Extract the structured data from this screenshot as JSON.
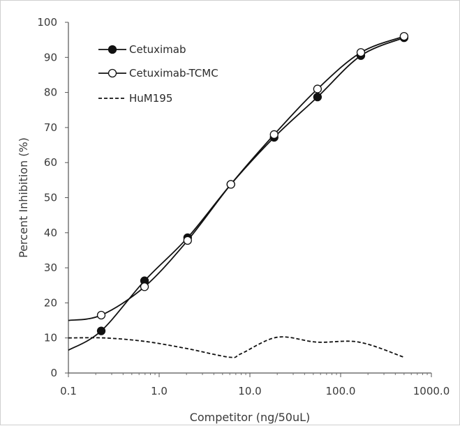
{
  "chart_data": {
    "type": "line",
    "title": "",
    "xlabel": "Competitor (ng/50uL)",
    "ylabel": "Percent Inhibition (%)",
    "xscale": "log",
    "xlim": [
      0.1,
      1000
    ],
    "ylim": [
      0,
      100
    ],
    "x_ticks": [
      0.1,
      1,
      10,
      100,
      1000
    ],
    "x_tick_labels": [
      "0.1",
      "1.0",
      "10.0",
      "100.0",
      "1000.0"
    ],
    "y_ticks": [
      0,
      10,
      20,
      30,
      40,
      50,
      60,
      70,
      80,
      90,
      100
    ],
    "y_tick_labels": [
      "0",
      "10",
      "20",
      "30",
      "40",
      "50",
      "60",
      "70",
      "80",
      "90",
      "100"
    ],
    "grid": false,
    "legend": "top-left",
    "series": [
      {
        "name": "Cetuximab",
        "marker": "filled-circle",
        "line": "solid",
        "color": "#111111",
        "points": [
          [
            0.23,
            12
          ],
          [
            0.69,
            26.3
          ],
          [
            2.06,
            38.6
          ],
          [
            6.17,
            53.8
          ],
          [
            18.5,
            67.2
          ],
          [
            55.6,
            78.7
          ],
          [
            167,
            90.5
          ],
          [
            500,
            95.6
          ]
        ],
        "curve_start": [
          0.1,
          6.5
        ]
      },
      {
        "name": "Cetuximab-TCMC",
        "marker": "open-circle",
        "line": "solid",
        "color": "#111111",
        "points": [
          [
            0.23,
            16.5
          ],
          [
            0.69,
            24.6
          ],
          [
            2.06,
            37.8
          ],
          [
            6.17,
            53.8
          ],
          [
            18.5,
            68
          ],
          [
            55.6,
            81
          ],
          [
            167,
            91.4
          ],
          [
            500,
            96
          ]
        ],
        "curve_start": [
          0.1,
          15
        ]
      },
      {
        "name": "HuM195",
        "marker": "none",
        "line": "dashed",
        "color": "#111111",
        "points": [
          [
            0.1,
            10
          ],
          [
            0.25,
            10
          ],
          [
            0.7,
            9
          ],
          [
            2,
            7
          ],
          [
            6,
            4.5
          ],
          [
            8,
            5.5
          ],
          [
            20,
            10.2
          ],
          [
            55,
            8.8
          ],
          [
            160,
            8.8
          ],
          [
            500,
            4.5
          ]
        ]
      }
    ]
  }
}
